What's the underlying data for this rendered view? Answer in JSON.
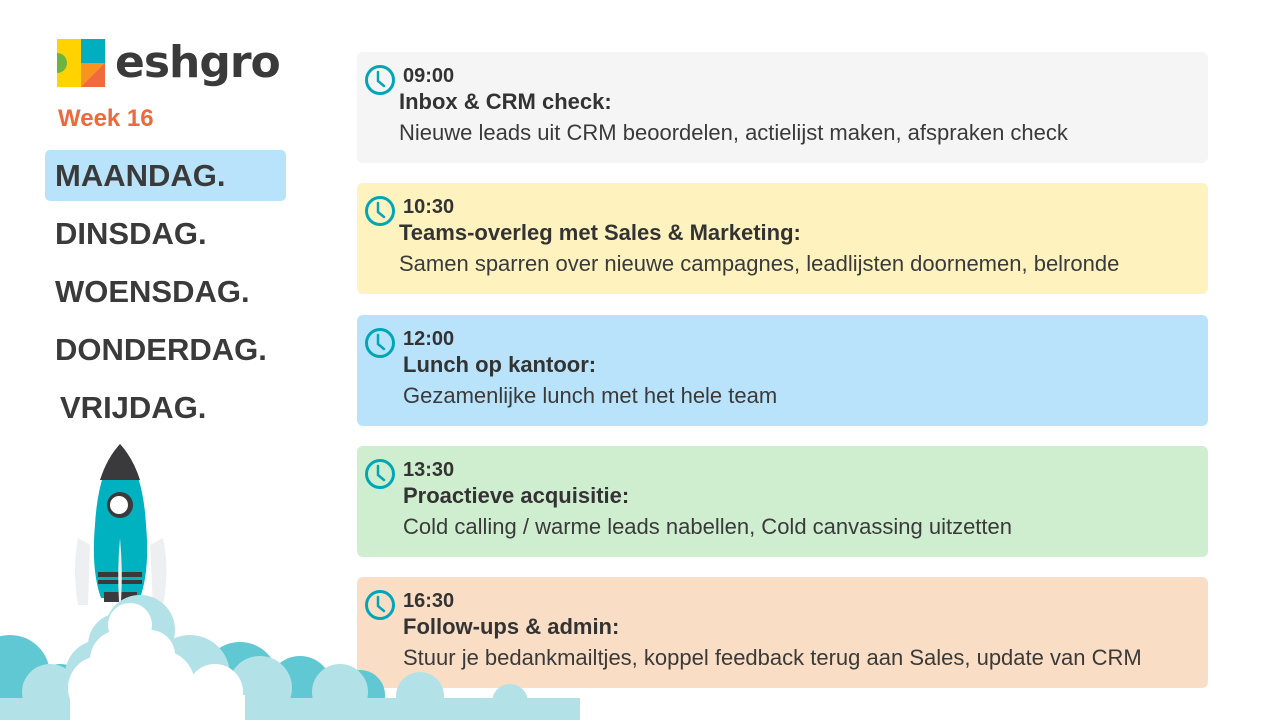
{
  "brand": {
    "name": "eshgro",
    "colors": {
      "yellow": "#ffd200",
      "teal": "#00aec0",
      "orange": "#f7931e",
      "red": "#ef6a3c",
      "green": "#6cb33f"
    }
  },
  "week": "Week 16",
  "days": [
    {
      "label": "MAANDAG.",
      "active": true
    },
    {
      "label": "DINSDAG.",
      "active": false
    },
    {
      "label": "WOENSDAG.",
      "active": false
    },
    {
      "label": "DONDERDAG.",
      "active": false
    },
    {
      "label": "VRIJDAG.",
      "active": false
    }
  ],
  "schedule": [
    {
      "time": "09:00",
      "title": "Inbox & CRM check:",
      "desc": "Nieuwe leads uit CRM beoordelen, actielijst maken, afspraken check",
      "color": "#f5f5f5",
      "icon": "clock-icon"
    },
    {
      "time": "10:30",
      "title": "Teams-overleg met Sales & Marketing:",
      "desc": "Samen sparren over nieuwe campagnes, leadlijsten doornemen, belronde",
      "color": "#fef3bf",
      "icon": "clock-icon"
    },
    {
      "time": "12:00",
      "title": "Lunch op kantoor:",
      "desc": "Gezamenlijke lunch met het hele team",
      "color": "#b8e3fb",
      "icon": "clock-icon"
    },
    {
      "time": "13:30",
      "title": "Proactieve acquisitie:",
      "desc": "Cold calling / warme leads nabellen, Cold canvassing uitzetten",
      "color": "#cfeecf",
      "icon": "clock-icon"
    },
    {
      "time": "16:30",
      "title": "Follow-ups & admin:",
      "desc": "Stuur je bedankmailtjes, koppel feedback terug aan Sales, update van CRM",
      "color": "#f9dec5",
      "icon": "clock-icon"
    }
  ]
}
